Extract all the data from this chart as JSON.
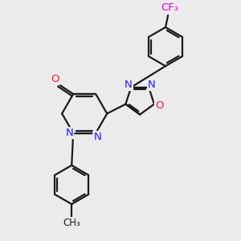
{
  "background_color": "#ebebeb",
  "bond_color": "#1a1a1a",
  "line_width": 1.6,
  "font_size_atoms": 9.5,
  "colors": {
    "N": "#1a1aff",
    "O": "#ff1a1a",
    "F": "#e000e0",
    "C": "#1a1a1a"
  },
  "xlim": [
    -2.5,
    3.5
  ],
  "ylim": [
    -4.2,
    3.2
  ]
}
